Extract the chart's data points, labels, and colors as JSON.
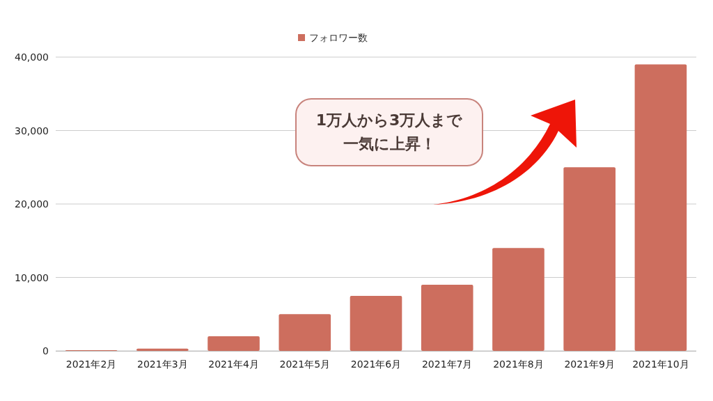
{
  "chart_data": {
    "type": "bar",
    "categories": [
      "2021年2月",
      "2021年3月",
      "2021年4月",
      "2021年5月",
      "2021年6月",
      "2021年7月",
      "2021年8月",
      "2021年9月",
      "2021年10月"
    ],
    "series": [
      {
        "name": "フォロワー数",
        "color": "#cd6e5e",
        "values": [
          100,
          300,
          2000,
          5000,
          7500,
          9000,
          14000,
          25000,
          39000
        ]
      }
    ],
    "ylim": [
      0,
      40000
    ],
    "yticks": [
      0,
      {
        "value": 10000,
        "label": "10,000"
      },
      {
        "value": 20000,
        "label": "20,000"
      },
      {
        "value": 30000,
        "label": "30,000"
      },
      {
        "value": 40000,
        "label": "40,000"
      }
    ],
    "grid": "y",
    "legend": "top",
    "annotations": [
      "1万人から3万人まで一気に上昇！"
    ]
  }
}
